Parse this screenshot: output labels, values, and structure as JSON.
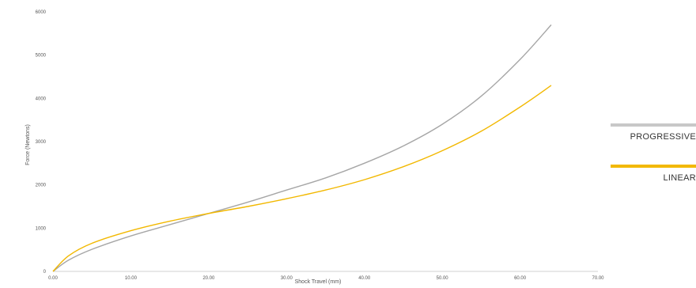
{
  "chart_data": {
    "type": "line",
    "title": "",
    "xlabel": "Shock Travel (mm)",
    "ylabel": "Force (Newtons)",
    "xlim": [
      0,
      70
    ],
    "ylim": [
      0,
      6000
    ],
    "x_ticks": [
      "0.00",
      "10.00",
      "20.00",
      "30.00",
      "40.00",
      "50.00",
      "60.00",
      "70.00"
    ],
    "y_ticks": [
      "0",
      "1000",
      "2000",
      "3000",
      "4000",
      "5000",
      "6000"
    ],
    "grid": false,
    "legend_position": "right",
    "series": [
      {
        "name": "PROGRESSIVE",
        "color": "#a6a6a6",
        "x": [
          0,
          2,
          5,
          10,
          15,
          20,
          25,
          30,
          35,
          40,
          45,
          50,
          55,
          60,
          64
        ],
        "y": [
          0,
          260,
          510,
          820,
          1080,
          1340,
          1600,
          1880,
          2160,
          2500,
          2900,
          3400,
          4050,
          4900,
          5700
        ]
      },
      {
        "name": "LINEAR",
        "color": "#f2b800",
        "x": [
          0,
          2,
          5,
          10,
          15,
          20,
          25,
          30,
          35,
          40,
          45,
          50,
          55,
          60,
          64
        ],
        "y": [
          0,
          360,
          650,
          940,
          1160,
          1340,
          1500,
          1680,
          1880,
          2120,
          2420,
          2790,
          3240,
          3800,
          4300
        ]
      }
    ]
  }
}
